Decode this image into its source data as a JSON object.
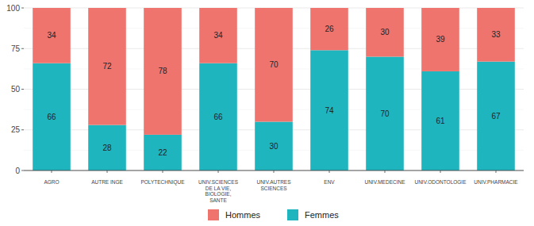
{
  "chart_data": {
    "type": "bar",
    "stacked": true,
    "data_labels": true,
    "grid": true,
    "legend": "bottom",
    "categories": [
      "AGRO",
      "AUTRE INGE",
      "POLYTECHNIQUE",
      "UNIV.SCIENCES DE LA VIE, BIOLOGIE, SANTE",
      "UNIV.AUTRES SCIENCES",
      "ENV",
      "UNIV.MEDECINE",
      "UNIV.ODONTOLOGIE",
      "UNIV.PHARMACIE"
    ],
    "series": [
      {
        "name": "Hommes",
        "color": "#f0746e",
        "values": [
          34,
          72,
          78,
          34,
          70,
          26,
          30,
          39,
          33
        ]
      },
      {
        "name": "Femmes",
        "color": "#1fb5bf",
        "values": [
          66,
          28,
          22,
          66,
          30,
          74,
          70,
          61,
          67
        ]
      }
    ],
    "ylim": [
      0,
      100
    ],
    "yticks": [
      0,
      25,
      50,
      75,
      100
    ]
  }
}
